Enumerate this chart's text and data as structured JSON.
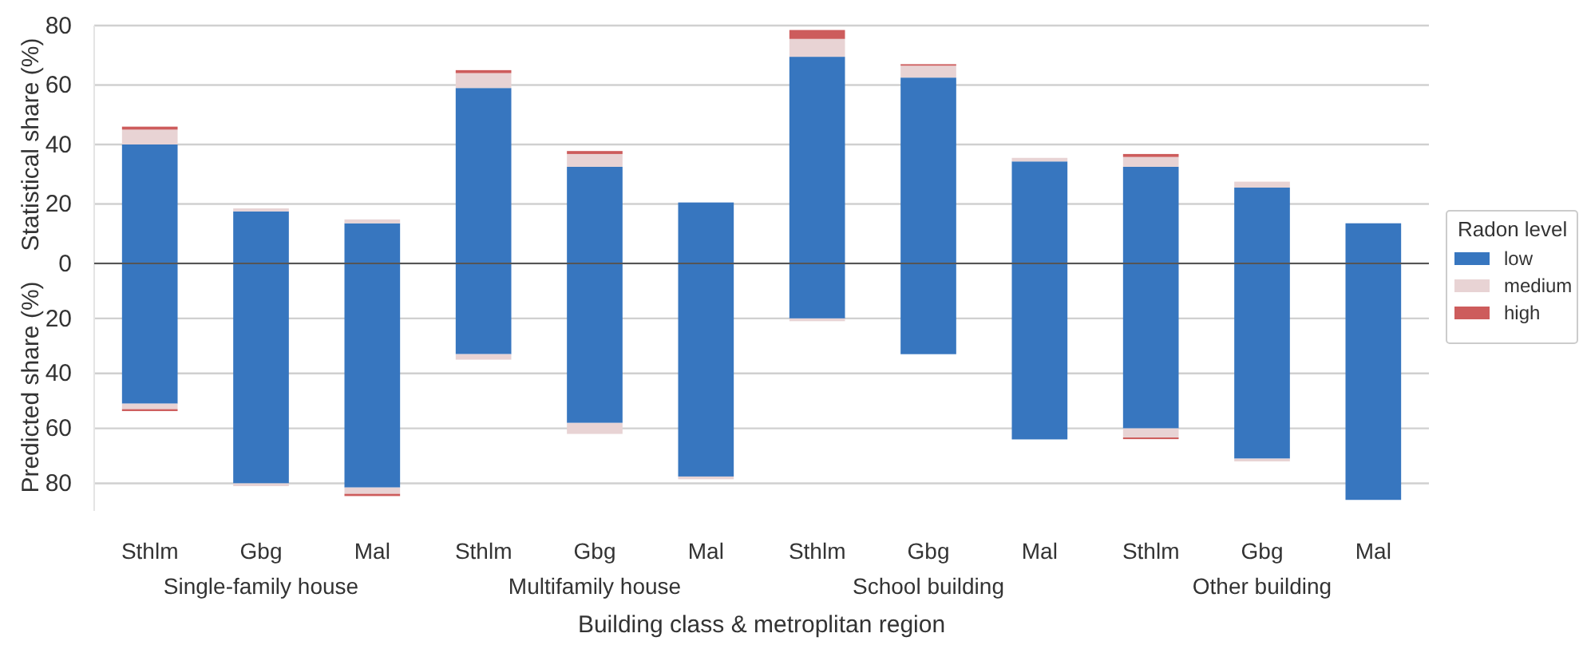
{
  "chart_data": [
    {
      "type": "bar",
      "stacked": true,
      "ylabel": "Statistical share (%)",
      "categories": [
        null,
        null,
        null,
        null,
        null,
        null,
        null,
        null,
        null,
        null,
        null,
        null
      ],
      "ylim": [
        0,
        80
      ],
      "yticks": [
        0,
        20,
        40,
        60,
        80
      ],
      "grid": "y",
      "tick_labels": "y",
      "legend": "right",
      "legend_title": "Radon level",
      "series": [
        {
          "name": "low",
          "color": "#3776bf",
          "values": [
            40,
            17.5,
            13.5,
            59,
            32.5,
            20.5,
            69.5,
            62.5,
            34.3,
            32.5,
            25.5,
            13.5
          ]
        },
        {
          "name": "medium",
          "color": "#e8d3d4",
          "values": [
            5,
            1,
            1.3,
            5,
            4.3,
            null,
            6,
            4,
            1.2,
            3.3,
            2,
            null
          ]
        },
        {
          "name": "high",
          "color": "#cd5c5c",
          "values": [
            1,
            null,
            null,
            1,
            1,
            null,
            3,
            0.5,
            null,
            1,
            null,
            null
          ]
        }
      ]
    },
    {
      "type": "bar",
      "stacked": true,
      "ylabel": "Predicted share (%)",
      "xlabel": "Building class & metroplitan region",
      "categories": [
        "Sthlm",
        "Gbg",
        "Mal",
        "Sthlm",
        "Gbg",
        "Mal",
        "Sthlm",
        "Gbg",
        "Mal",
        "Sthlm",
        "Gbg",
        "Mal"
      ],
      "ylim": [
        90,
        0
      ],
      "yticks": [
        20,
        40,
        60,
        80
      ],
      "grid": "y",
      "annotations": [
        "Single-family house",
        "Multifamily house",
        "School building",
        "Other building"
      ],
      "series": [
        {
          "color": "#3776bf",
          "values": [
            51,
            80,
            81.5,
            33,
            58,
            77.5,
            20,
            33,
            64,
            60,
            71,
            86
          ]
        },
        {
          "color": "#e8d3d4",
          "values": [
            2,
            1,
            2.3,
            2,
            4,
            1,
            1,
            null,
            null,
            3.3,
            1,
            null
          ]
        },
        {
          "color": "#cd5c5c",
          "values": [
            0.7,
            null,
            0.8,
            null,
            null,
            null,
            null,
            null,
            null,
            0.6,
            null,
            null
          ]
        }
      ]
    }
  ]
}
